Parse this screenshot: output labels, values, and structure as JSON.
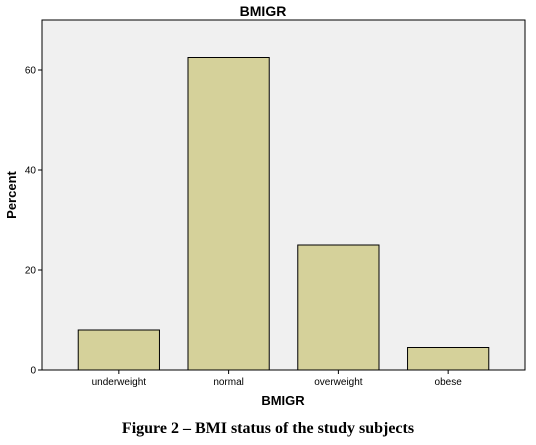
{
  "chart_data": {
    "type": "bar",
    "title": "BMIGR",
    "xlabel": "BMIGR",
    "ylabel": "Percent",
    "categories": [
      "underweight",
      "normal",
      "overweight",
      "obese"
    ],
    "values": [
      8,
      62.5,
      25,
      4.5
    ],
    "yticks": [
      "0",
      "20",
      "40",
      "60"
    ],
    "ylim": [
      0,
      70
    ],
    "grid": false,
    "colors": {
      "bar": "#d5d19a",
      "plot_bg": "#f0f0f0",
      "stroke": "#000000"
    }
  },
  "caption": "Figure 2 – BMI status of the study subjects"
}
